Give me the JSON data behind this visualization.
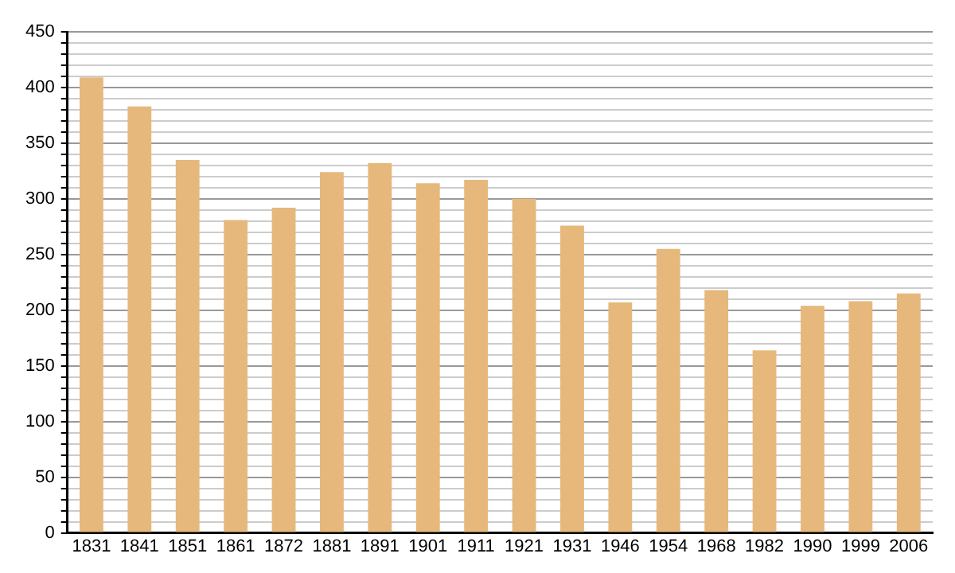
{
  "chart_data": {
    "type": "bar",
    "categories": [
      "1831",
      "1841",
      "1851",
      "1861",
      "1872",
      "1881",
      "1891",
      "1901",
      "1911",
      "1921",
      "1931",
      "1946",
      "1954",
      "1968",
      "1982",
      "1990",
      "1999",
      "2006"
    ],
    "values": [
      409,
      383,
      335,
      281,
      292,
      324,
      332,
      314,
      317,
      300,
      276,
      207,
      255,
      218,
      164,
      204,
      208,
      215
    ],
    "color": "#e6b87c",
    "ylim": [
      0,
      450
    ],
    "yticks": [
      0,
      {
        "value": 10,
        "label": null
      },
      {
        "value": 20,
        "label": null
      },
      {
        "value": 30,
        "label": null
      },
      {
        "value": 40,
        "label": null
      },
      50,
      {
        "value": 60,
        "label": null
      },
      {
        "value": 70,
        "label": null
      },
      {
        "value": 80,
        "label": null
      },
      {
        "value": 90,
        "label": null
      },
      100,
      {
        "value": 110,
        "label": null
      },
      {
        "value": 120,
        "label": null
      },
      {
        "value": 130,
        "label": null
      },
      {
        "value": 140,
        "label": null
      },
      150,
      {
        "value": 160,
        "label": null
      },
      {
        "value": 170,
        "label": null
      },
      {
        "value": 180,
        "label": null
      },
      {
        "value": 190,
        "label": null
      },
      200,
      {
        "value": 210,
        "label": null
      },
      {
        "value": 220,
        "label": null
      },
      {
        "value": 230,
        "label": null
      },
      {
        "value": 240,
        "label": null
      },
      250,
      {
        "value": 260,
        "label": null
      },
      {
        "value": 270,
        "label": null
      },
      {
        "value": 280,
        "label": null
      },
      {
        "value": 290,
        "label": null
      },
      300,
      {
        "value": 310,
        "label": null
      },
      {
        "value": 320,
        "label": null
      },
      {
        "value": 330,
        "label": null
      },
      {
        "value": 340,
        "label": null
      },
      350,
      {
        "value": 360,
        "label": null
      },
      {
        "value": 370,
        "label": null
      },
      {
        "value": 380,
        "label": null
      },
      {
        "value": 390,
        "label": null
      },
      400,
      {
        "value": 410,
        "label": null
      },
      {
        "value": 420,
        "label": null
      },
      {
        "value": 430,
        "label": null
      },
      {
        "value": 440,
        "label": null
      },
      450
    ],
    "grid": "y",
    "legend": false
  }
}
